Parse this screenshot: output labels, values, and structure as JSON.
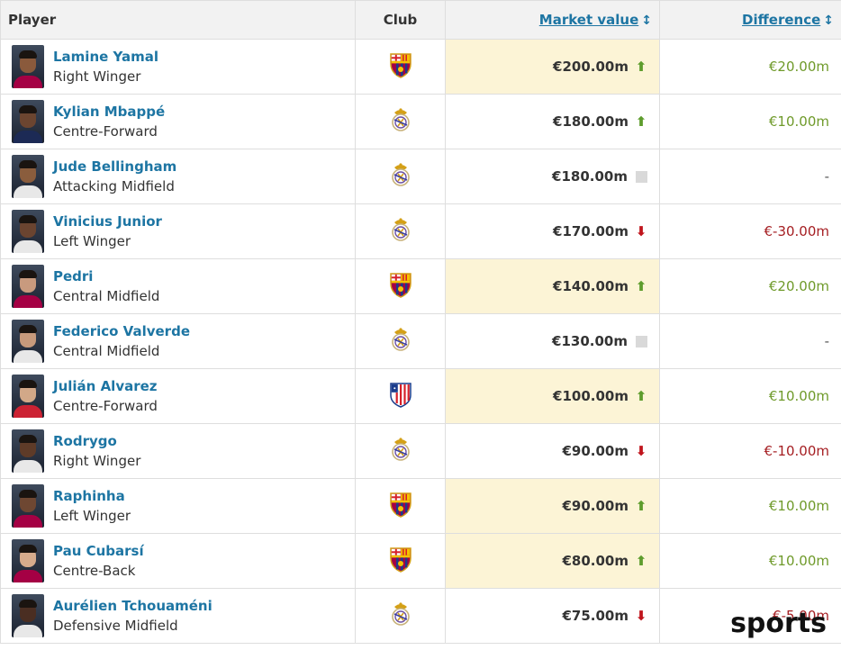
{
  "table": {
    "headers": {
      "player": "Player",
      "club": "Club",
      "market_value": "Market value",
      "difference": "Difference"
    },
    "rows": [
      {
        "name": "Lamine Yamal",
        "position": "Right Winger",
        "club_icon": "barcelona-crest-icon",
        "value": "€200.00m",
        "trend": "up",
        "difference": "€20.00m",
        "highlight": true,
        "skin": "#8a5a3c",
        "shirt": "#a50044"
      },
      {
        "name": "Kylian Mbappé",
        "position": "Centre-Forward",
        "club_icon": "real-madrid-crest-icon",
        "value": "€180.00m",
        "trend": "up",
        "difference": "€10.00m",
        "highlight": false,
        "skin": "#6b4530",
        "shirt": "#1c2a55"
      },
      {
        "name": "Jude Bellingham",
        "position": "Attacking Midfield",
        "club_icon": "real-madrid-crest-icon",
        "value": "€180.00m",
        "trend": "same",
        "difference": "-",
        "highlight": false,
        "skin": "#8a5d3d",
        "shirt": "#e8e8e8"
      },
      {
        "name": "Vinicius Junior",
        "position": "Left Winger",
        "club_icon": "real-madrid-crest-icon",
        "value": "€170.00m",
        "trend": "down",
        "difference": "€-30.00m",
        "highlight": false,
        "skin": "#6a4430",
        "shirt": "#e8e8e8"
      },
      {
        "name": "Pedri",
        "position": "Central Midfield",
        "club_icon": "barcelona-crest-icon",
        "value": "€140.00m",
        "trend": "up",
        "difference": "€20.00m",
        "highlight": true,
        "skin": "#c89a7e",
        "shirt": "#a50044"
      },
      {
        "name": "Federico Valverde",
        "position": "Central Midfield",
        "club_icon": "real-madrid-crest-icon",
        "value": "€130.00m",
        "trend": "same",
        "difference": "-",
        "highlight": false,
        "skin": "#c79a7c",
        "shirt": "#e8e8e8"
      },
      {
        "name": "Julián Alvarez",
        "position": "Centre-Forward",
        "club_icon": "atletico-madrid-crest-icon",
        "value": "€100.00m",
        "trend": "up",
        "difference": "€10.00m",
        "highlight": true,
        "skin": "#d2a888",
        "shirt": "#cc2233"
      },
      {
        "name": "Rodrygo",
        "position": "Right Winger",
        "club_icon": "real-madrid-crest-icon",
        "value": "€90.00m",
        "trend": "down",
        "difference": "€-10.00m",
        "highlight": false,
        "skin": "#5e3b28",
        "shirt": "#e8e8e8"
      },
      {
        "name": "Raphinha",
        "position": "Left Winger",
        "club_icon": "barcelona-crest-icon",
        "value": "€90.00m",
        "trend": "up",
        "difference": "€10.00m",
        "highlight": true,
        "skin": "#6e4732",
        "shirt": "#a50044"
      },
      {
        "name": "Pau Cubarsí",
        "position": "Centre-Back",
        "club_icon": "barcelona-crest-icon",
        "value": "€80.00m",
        "trend": "up",
        "difference": "€10.00m",
        "highlight": true,
        "skin": "#d6ab8c",
        "shirt": "#a50044"
      },
      {
        "name": "Aurélien Tchouaméni",
        "position": "Defensive Midfield",
        "club_icon": "real-madrid-crest-icon",
        "value": "€75.00m",
        "trend": "down",
        "difference": "€-5.00m",
        "highlight": false,
        "skin": "#4a2e22",
        "shirt": "#e8e8e8"
      }
    ]
  },
  "watermark": "sports",
  "colors": {
    "link": "#1d75a3",
    "highlight": "#fcf4d6",
    "positive": "#6f9a2a",
    "negative": "#a51e22",
    "arrow_up": "#5d9c2c",
    "arrow_down": "#c0141c"
  }
}
